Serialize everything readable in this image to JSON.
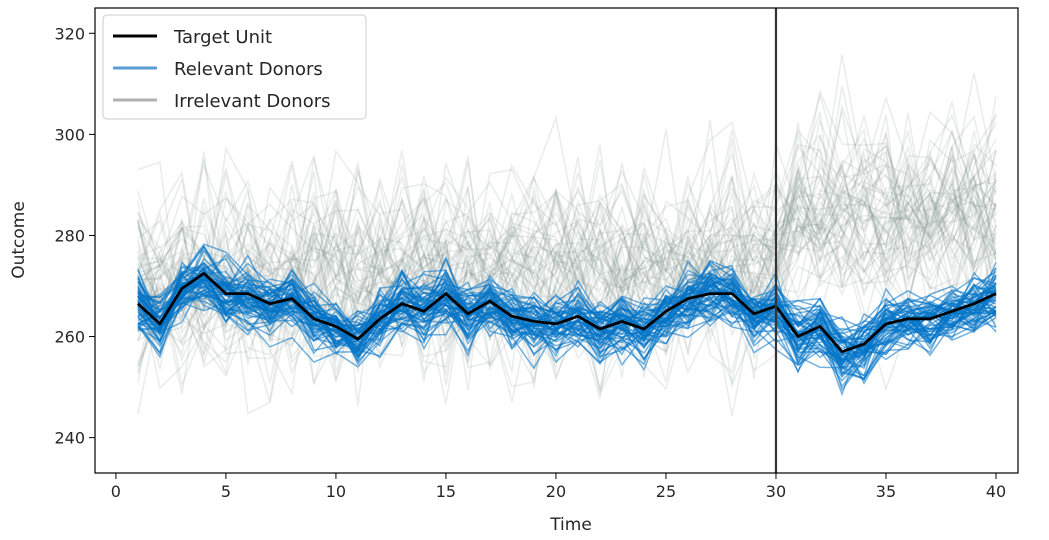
{
  "chart_data": {
    "type": "line",
    "xlabel": "Time",
    "ylabel": "Outcome",
    "xlim": [
      -0.95,
      41.0
    ],
    "ylim": [
      233.0,
      325.0
    ],
    "xticks": [
      0,
      5,
      10,
      15,
      20,
      25,
      30,
      35,
      40
    ],
    "yticks": [
      240,
      260,
      280,
      300,
      320
    ],
    "intervention_time": 30,
    "legend": {
      "position": "top-left",
      "entries": [
        {
          "label": "Target Unit",
          "color": "#000000"
        },
        {
          "label": "Relevant Donors",
          "color": "#5a9ed6"
        },
        {
          "label": "Irrelevant Donors",
          "color": "#b0b0b0"
        }
      ]
    },
    "colors": {
      "target": "#000000",
      "relevant": "#0072c6",
      "irrelevant": "#7f8c86",
      "vline": "#333333"
    },
    "x": [
      1,
      2,
      3,
      4,
      5,
      6,
      7,
      8,
      9,
      10,
      11,
      12,
      13,
      14,
      15,
      16,
      17,
      18,
      19,
      20,
      21,
      22,
      23,
      24,
      25,
      26,
      27,
      28,
      29,
      30,
      31,
      32,
      33,
      34,
      35,
      36,
      37,
      38,
      39,
      40
    ],
    "target_unit": [
      266.5,
      262.5,
      269.5,
      272.5,
      268.5,
      268.5,
      266.5,
      267.5,
      263.5,
      262.0,
      259.5,
      263.5,
      266.5,
      265.0,
      268.5,
      264.5,
      267.0,
      264.0,
      263.0,
      262.5,
      264.0,
      261.5,
      263.0,
      261.5,
      265.0,
      267.5,
      268.5,
      268.5,
      264.5,
      266.0,
      260.0,
      262.0,
      257.0,
      258.5,
      262.5,
      263.5,
      263.5,
      265.0,
      266.5,
      268.5
    ],
    "relevant_donors": {
      "count": 60,
      "spread": 2.6
    },
    "irrelevant_donors": {
      "count": 60,
      "pre_mean": 273,
      "post_mean": 284,
      "spread": 11
    }
  }
}
